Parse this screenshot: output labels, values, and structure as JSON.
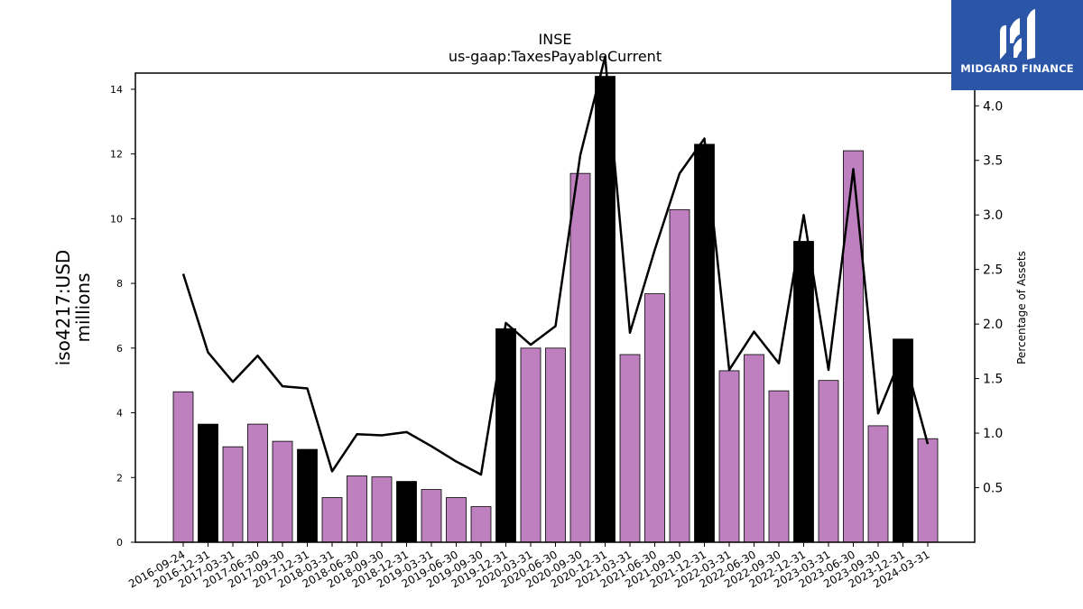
{
  "chart_data": {
    "type": "bar",
    "title": "INSE",
    "subtitle": "us-gaap:TaxesPayableCurrent",
    "ylabel": "iso4217:USD\nmillions",
    "y2label": "Percentage of Assets",
    "ylim": [
      0,
      14.5
    ],
    "y2lim": [
      0,
      4.3
    ],
    "yticks": [
      0,
      2,
      4,
      6,
      8,
      10,
      12,
      14
    ],
    "y2ticks": [
      0.5,
      1.0,
      1.5,
      2.0,
      2.5,
      3.0,
      3.5,
      4.0
    ],
    "categories": [
      "2016-09-24",
      "2016-12-31",
      "2017-03-31",
      "2017-06-30",
      "2017-09-30",
      "2017-12-31",
      "2018-03-31",
      "2018-06-30",
      "2018-09-30",
      "2018-12-31",
      "2019-03-31",
      "2019-06-30",
      "2019-09-30",
      "2019-12-31",
      "2020-03-31",
      "2020-06-30",
      "2020-09-30",
      "2020-12-31",
      "2021-03-31",
      "2021-06-30",
      "2021-09-30",
      "2021-12-31",
      "2022-03-31",
      "2022-06-30",
      "2022-09-30",
      "2022-12-31",
      "2023-03-31",
      "2023-06-30",
      "2023-09-30",
      "2023-12-31",
      "2024-03-31"
    ],
    "series": [
      {
        "axis": "left",
        "kind": "bar",
        "values": [
          4.65,
          3.65,
          2.95,
          3.65,
          3.12,
          2.87,
          1.38,
          2.05,
          2.02,
          1.88,
          1.63,
          1.38,
          1.1,
          6.6,
          6.0,
          6.0,
          11.4,
          14.4,
          5.8,
          7.68,
          10.28,
          12.3,
          5.3,
          5.8,
          4.68,
          9.3,
          5.0,
          12.1,
          3.6,
          6.28,
          3.2
        ],
        "year_end": [
          false,
          true,
          false,
          false,
          false,
          true,
          false,
          false,
          false,
          true,
          false,
          false,
          false,
          true,
          false,
          false,
          false,
          true,
          false,
          false,
          false,
          true,
          false,
          false,
          false,
          true,
          false,
          false,
          false,
          true,
          false
        ]
      },
      {
        "axis": "right",
        "kind": "line",
        "values": [
          2.46,
          1.74,
          1.47,
          1.71,
          1.43,
          1.41,
          0.65,
          0.99,
          0.98,
          1.01,
          0.88,
          0.74,
          0.62,
          2.01,
          1.81,
          1.98,
          3.55,
          4.45,
          1.92,
          2.68,
          3.38,
          3.7,
          1.58,
          1.93,
          1.64,
          3.0,
          1.58,
          3.42,
          1.18,
          1.74,
          0.9
        ]
      }
    ],
    "colors": {
      "bar": "#bf80bf",
      "bar_year_end": "#000000",
      "line": "#000000"
    },
    "legend": "none",
    "grid": false
  },
  "logo": {
    "text": "MIDGARD FINANCE",
    "bg": "#2b56a8"
  }
}
